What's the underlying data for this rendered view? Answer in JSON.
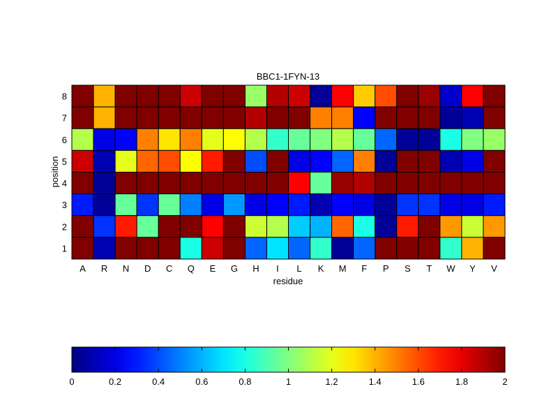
{
  "chart_data": {
    "type": "heatmap",
    "title": "BBC1-1FYN-13",
    "xlabel": "residue",
    "ylabel": "position",
    "x_categories": [
      "A",
      "R",
      "N",
      "D",
      "C",
      "Q",
      "E",
      "G",
      "H",
      "I",
      "L",
      "K",
      "M",
      "F",
      "P",
      "S",
      "T",
      "W",
      "Y",
      "V"
    ],
    "y_categories": [
      "8",
      "7",
      "6",
      "5",
      "4",
      "3",
      "2",
      "1"
    ],
    "colormap": "jet",
    "clim": [
      0,
      2
    ],
    "colorbar": {
      "location": "bottom",
      "ticks": [
        0,
        0.2,
        0.4,
        0.6,
        0.8,
        1,
        1.2,
        1.4,
        1.6,
        1.8,
        2
      ],
      "tick_labels": [
        "0",
        "0.2",
        "0.4",
        "0.6",
        "0.8",
        "1",
        "1.2",
        "1.4",
        "1.6",
        "1.8",
        "2"
      ]
    },
    "values": [
      [
        2.0,
        1.4,
        2.0,
        2.0,
        2.0,
        1.85,
        2.0,
        2.0,
        1.05,
        1.9,
        1.85,
        0.05,
        1.75,
        1.35,
        1.6,
        2.0,
        1.95,
        0.15,
        1.75,
        2.0
      ],
      [
        2.0,
        1.4,
        2.0,
        2.0,
        2.0,
        2.0,
        2.0,
        2.0,
        1.9,
        2.0,
        2.0,
        1.5,
        1.5,
        0.25,
        2.0,
        2.0,
        2.0,
        0.05,
        0.1,
        2.0
      ],
      [
        1.1,
        0.2,
        0.25,
        1.5,
        1.3,
        1.5,
        1.2,
        1.25,
        1.1,
        0.85,
        0.95,
        1.0,
        1.1,
        0.95,
        0.45,
        0.05,
        0.05,
        0.8,
        1.0,
        1.05
      ],
      [
        1.85,
        0.1,
        1.2,
        1.55,
        1.6,
        1.25,
        1.7,
        2.0,
        0.4,
        2.0,
        0.2,
        0.25,
        0.45,
        1.5,
        0.05,
        2.0,
        2.0,
        0.1,
        0.2,
        2.0
      ],
      [
        2.0,
        0.05,
        2.0,
        2.0,
        2.0,
        2.0,
        2.0,
        2.0,
        2.0,
        2.0,
        1.75,
        0.95,
        1.95,
        1.9,
        2.0,
        2.0,
        2.0,
        2.0,
        2.0,
        2.0
      ],
      [
        0.3,
        0.05,
        0.95,
        0.35,
        0.95,
        0.5,
        0.2,
        0.55,
        0.2,
        0.25,
        0.3,
        0.1,
        0.25,
        0.2,
        0.05,
        0.35,
        0.35,
        0.2,
        0.2,
        0.3
      ],
      [
        2.0,
        0.35,
        1.7,
        0.95,
        2.0,
        2.0,
        1.75,
        2.0,
        1.15,
        1.1,
        0.65,
        0.6,
        1.55,
        0.8,
        0.05,
        1.7,
        2.0,
        1.45,
        1.15,
        1.45
      ],
      [
        2.0,
        0.1,
        2.0,
        2.0,
        2.0,
        0.8,
        1.85,
        2.0,
        0.45,
        0.7,
        0.45,
        0.85,
        0.05,
        0.45,
        2.0,
        2.0,
        2.0,
        0.85,
        1.4,
        2.0
      ]
    ]
  }
}
